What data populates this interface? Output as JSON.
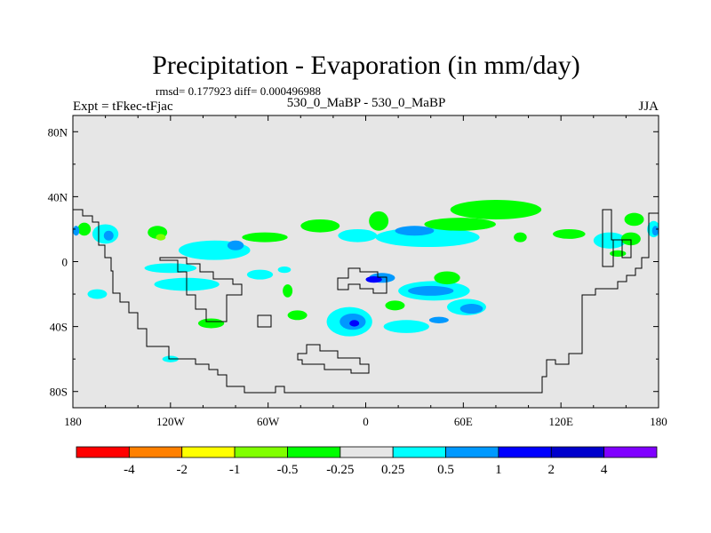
{
  "chart_data": {
    "type": "heatmap",
    "title": "Precipitation - Evaporation (in mm/day)",
    "stats_text": "rmsd= 0.177923  diff= 0.000496988",
    "left_label": "Expt = tFkec-tFjac",
    "center_label": "530_0_MaBP - 530_0_MaBP",
    "right_label": "JJA",
    "x_ticks": [
      "180",
      "120W",
      "60W",
      "0",
      "60E",
      "120E",
      "180"
    ],
    "y_ticks": [
      "80N",
      "40N",
      "0",
      "40S",
      "80S"
    ],
    "xlim": [
      -180,
      180
    ],
    "ylim": [
      -90,
      90
    ],
    "grid": false,
    "background_fill": "#e6e6e6",
    "colorbar": {
      "colors": [
        "#ff0000",
        "#ff8000",
        "#ffff00",
        "#80ff00",
        "#00ff00",
        "#e6e6e6",
        "#00ffff",
        "#0099ff",
        "#0000ff",
        "#0000cc",
        "#8000ff"
      ],
      "labels": [
        "-4",
        "-2",
        "-1",
        "-0.5",
        "-0.25",
        "0.25",
        "0.5",
        "1",
        "2",
        "4"
      ]
    },
    "field_colors": {
      "pos1": "#00ffff",
      "pos2": "#0099ff",
      "pos3": "#0000ff",
      "neg1": "#00ff00",
      "neg2": "#80ff00"
    },
    "anomaly_patches": [
      {
        "lon": -128,
        "lat": 18,
        "rlon": 6,
        "rlat": 4,
        "level": "neg1"
      },
      {
        "lon": -126,
        "lat": 15,
        "rlon": 3,
        "rlat": 2,
        "level": "neg2"
      },
      {
        "lon": -93,
        "lat": 7,
        "rlon": 22,
        "rlat": 6,
        "level": "pos1"
      },
      {
        "lon": -80,
        "lat": 10,
        "rlon": 5,
        "rlat": 3,
        "level": "pos2"
      },
      {
        "lon": -120,
        "lat": -4,
        "rlon": 16,
        "rlat": 3,
        "level": "pos1"
      },
      {
        "lon": -110,
        "lat": -14,
        "rlon": 20,
        "rlat": 4,
        "level": "pos1"
      },
      {
        "lon": -65,
        "lat": -8,
        "rlon": 8,
        "rlat": 3,
        "level": "pos1"
      },
      {
        "lon": -160,
        "lat": 17,
        "rlon": 8,
        "rlat": 6,
        "level": "pos1"
      },
      {
        "lon": -158,
        "lat": 16,
        "rlon": 3,
        "rlat": 3,
        "level": "pos2"
      },
      {
        "lon": -173,
        "lat": 20,
        "rlon": 4,
        "rlat": 4,
        "level": "neg1"
      },
      {
        "lon": -178,
        "lat": 19,
        "rlon": 2,
        "rlat": 3,
        "level": "pos2"
      },
      {
        "lon": -62,
        "lat": 15,
        "rlon": 14,
        "rlat": 3,
        "level": "neg1"
      },
      {
        "lon": -28,
        "lat": 22,
        "rlon": 12,
        "rlat": 4,
        "level": "neg1"
      },
      {
        "lon": -5,
        "lat": 16,
        "rlon": 12,
        "rlat": 4,
        "level": "pos1"
      },
      {
        "lon": 8,
        "lat": 25,
        "rlon": 6,
        "rlat": 6,
        "level": "neg1"
      },
      {
        "lon": 38,
        "lat": 15,
        "rlon": 32,
        "rlat": 6,
        "level": "pos1"
      },
      {
        "lon": 30,
        "lat": 19,
        "rlon": 12,
        "rlat": 3,
        "level": "pos2"
      },
      {
        "lon": 80,
        "lat": 32,
        "rlon": 28,
        "rlat": 6,
        "level": "neg1"
      },
      {
        "lon": 58,
        "lat": 23,
        "rlon": 22,
        "rlat": 4,
        "level": "neg1"
      },
      {
        "lon": 125,
        "lat": 17,
        "rlon": 10,
        "rlat": 3,
        "level": "neg1"
      },
      {
        "lon": 150,
        "lat": 13,
        "rlon": 10,
        "rlat": 5,
        "level": "pos1"
      },
      {
        "lon": 163,
        "lat": 14,
        "rlon": 6,
        "rlat": 4,
        "level": "neg1"
      },
      {
        "lon": 177,
        "lat": 20,
        "rlon": 4,
        "rlat": 5,
        "level": "pos1"
      },
      {
        "lon": 178,
        "lat": 19,
        "rlon": 2,
        "rlat": 3,
        "level": "pos2"
      },
      {
        "lon": 165,
        "lat": 26,
        "rlon": 6,
        "rlat": 4,
        "level": "neg1"
      },
      {
        "lon": 95,
        "lat": 15,
        "rlon": 4,
        "rlat": 3,
        "level": "neg1"
      },
      {
        "lon": 42,
        "lat": -18,
        "rlon": 22,
        "rlat": 6,
        "level": "pos1"
      },
      {
        "lon": 40,
        "lat": -18,
        "rlon": 14,
        "rlat": 3,
        "level": "pos2"
      },
      {
        "lon": 10,
        "lat": -10,
        "rlon": 8,
        "rlat": 3,
        "level": "pos2"
      },
      {
        "lon": 5,
        "lat": -11,
        "rlon": 5,
        "rlat": 2,
        "level": "pos3"
      },
      {
        "lon": 62,
        "lat": -28,
        "rlon": 12,
        "rlat": 5,
        "level": "pos1"
      },
      {
        "lon": 65,
        "lat": -29,
        "rlon": 7,
        "rlat": 3,
        "level": "pos2"
      },
      {
        "lon": -10,
        "lat": -37,
        "rlon": 14,
        "rlat": 9,
        "level": "pos1"
      },
      {
        "lon": -8,
        "lat": -37,
        "rlon": 8,
        "rlat": 5,
        "level": "pos2"
      },
      {
        "lon": -7,
        "lat": -38,
        "rlon": 3,
        "rlat": 2,
        "level": "pos3"
      },
      {
        "lon": 25,
        "lat": -40,
        "rlon": 14,
        "rlat": 4,
        "level": "pos1"
      },
      {
        "lon": 45,
        "lat": -36,
        "rlon": 6,
        "rlat": 2,
        "level": "pos2"
      },
      {
        "lon": -42,
        "lat": -33,
        "rlon": 6,
        "rlat": 3,
        "level": "neg1"
      },
      {
        "lon": -95,
        "lat": -38,
        "rlon": 8,
        "rlat": 3,
        "level": "neg1"
      },
      {
        "lon": -48,
        "lat": -18,
        "rlon": 3,
        "rlat": 4,
        "level": "neg1"
      },
      {
        "lon": 50,
        "lat": -10,
        "rlon": 8,
        "rlat": 4,
        "level": "neg1"
      },
      {
        "lon": 18,
        "lat": -27,
        "rlon": 6,
        "rlat": 3,
        "level": "neg1"
      },
      {
        "lon": -50,
        "lat": -5,
        "rlon": 4,
        "rlat": 2,
        "level": "pos1"
      },
      {
        "lon": -120,
        "lat": -60,
        "rlon": 5,
        "rlat": 2,
        "level": "pos1"
      },
      {
        "lon": -165,
        "lat": -20,
        "rlon": 6,
        "rlat": 3,
        "level": "pos1"
      },
      {
        "lon": 155,
        "lat": 5,
        "rlon": 5,
        "rlat": 2,
        "level": "neg1"
      }
    ]
  }
}
